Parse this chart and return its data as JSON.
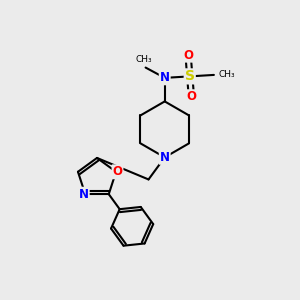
{
  "bg_color": "#ebebeb",
  "bond_color": "#000000",
  "atom_colors": {
    "N": "#0000ff",
    "O": "#ff0000",
    "S": "#cccc00",
    "C": "#000000"
  },
  "figsize": [
    3.0,
    3.0
  ],
  "dpi": 100
}
